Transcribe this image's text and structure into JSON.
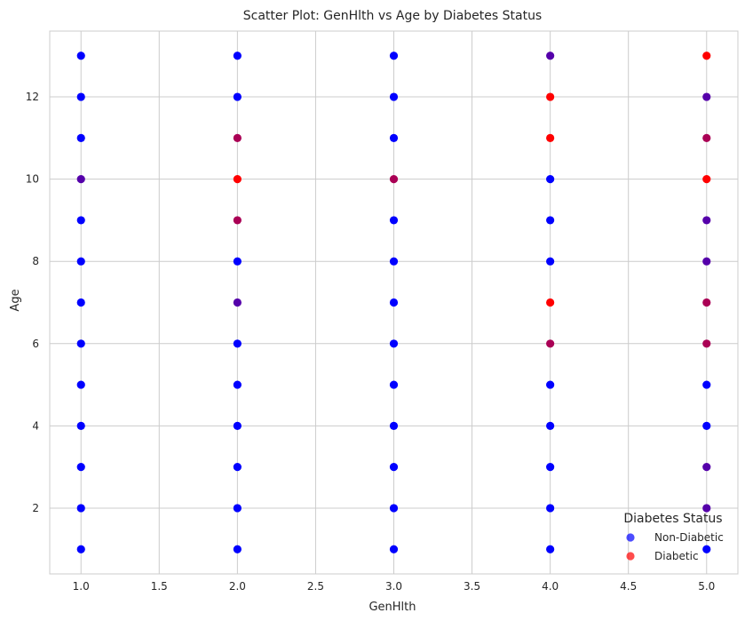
{
  "chart_data": {
    "type": "scatter",
    "title": "Scatter Plot: GenHlth vs Age by Diabetes Status",
    "xlabel": "GenHlth",
    "ylabel": "Age",
    "xlim": [
      0.8,
      5.2
    ],
    "ylim": [
      0.4,
      13.6
    ],
    "xticks": [
      "1.0",
      "1.5",
      "2.0",
      "2.5",
      "3.0",
      "3.5",
      "4.0",
      "4.5",
      "5.0"
    ],
    "yticks": [
      "2",
      "4",
      "6",
      "8",
      "10",
      "12"
    ],
    "grid": true,
    "legend": {
      "title": "Diabetes Status",
      "placement": "bottom-right",
      "entries": [
        {
          "label": "Non-Diabetic",
          "color": "#0000ff"
        },
        {
          "label": "Diabetic",
          "color": "#ff0000"
        }
      ]
    },
    "points": [
      {
        "x": 1,
        "y": 1,
        "color": "#0000ff"
      },
      {
        "x": 1,
        "y": 2,
        "color": "#0000ff"
      },
      {
        "x": 1,
        "y": 3,
        "color": "#0000ff"
      },
      {
        "x": 1,
        "y": 4,
        "color": "#0000ff"
      },
      {
        "x": 1,
        "y": 5,
        "color": "#0000ff"
      },
      {
        "x": 1,
        "y": 6,
        "color": "#0000ff"
      },
      {
        "x": 1,
        "y": 7,
        "color": "#0000ff"
      },
      {
        "x": 1,
        "y": 8,
        "color": "#0000ff"
      },
      {
        "x": 1,
        "y": 9,
        "color": "#0000ff"
      },
      {
        "x": 1,
        "y": 10,
        "color": "#5500aa"
      },
      {
        "x": 1,
        "y": 11,
        "color": "#0000ff"
      },
      {
        "x": 1,
        "y": 12,
        "color": "#0000ff"
      },
      {
        "x": 1,
        "y": 13,
        "color": "#0000ff"
      },
      {
        "x": 2,
        "y": 1,
        "color": "#0000ff"
      },
      {
        "x": 2,
        "y": 2,
        "color": "#0000ff"
      },
      {
        "x": 2,
        "y": 3,
        "color": "#0000ff"
      },
      {
        "x": 2,
        "y": 4,
        "color": "#0000ff"
      },
      {
        "x": 2,
        "y": 5,
        "color": "#0000ff"
      },
      {
        "x": 2,
        "y": 6,
        "color": "#0000ff"
      },
      {
        "x": 2,
        "y": 7,
        "color": "#5500aa"
      },
      {
        "x": 2,
        "y": 8,
        "color": "#0000ff"
      },
      {
        "x": 2,
        "y": 9,
        "color": "#aa0055"
      },
      {
        "x": 2,
        "y": 10,
        "color": "#ff0000"
      },
      {
        "x": 2,
        "y": 11,
        "color": "#aa0055"
      },
      {
        "x": 2,
        "y": 12,
        "color": "#0000ff"
      },
      {
        "x": 2,
        "y": 13,
        "color": "#0000ff"
      },
      {
        "x": 3,
        "y": 1,
        "color": "#0000ff"
      },
      {
        "x": 3,
        "y": 2,
        "color": "#0000ff"
      },
      {
        "x": 3,
        "y": 3,
        "color": "#0000ff"
      },
      {
        "x": 3,
        "y": 4,
        "color": "#0000ff"
      },
      {
        "x": 3,
        "y": 5,
        "color": "#0000ff"
      },
      {
        "x": 3,
        "y": 6,
        "color": "#0000ff"
      },
      {
        "x": 3,
        "y": 7,
        "color": "#0000ff"
      },
      {
        "x": 3,
        "y": 8,
        "color": "#0000ff"
      },
      {
        "x": 3,
        "y": 9,
        "color": "#0000ff"
      },
      {
        "x": 3,
        "y": 10,
        "color": "#aa0055"
      },
      {
        "x": 3,
        "y": 11,
        "color": "#0000ff"
      },
      {
        "x": 3,
        "y": 12,
        "color": "#0000ff"
      },
      {
        "x": 3,
        "y": 13,
        "color": "#0000ff"
      },
      {
        "x": 4,
        "y": 1,
        "color": "#0000ff"
      },
      {
        "x": 4,
        "y": 2,
        "color": "#0000ff"
      },
      {
        "x": 4,
        "y": 3,
        "color": "#0000ff"
      },
      {
        "x": 4,
        "y": 4,
        "color": "#0000ff"
      },
      {
        "x": 4,
        "y": 5,
        "color": "#0000ff"
      },
      {
        "x": 4,
        "y": 6,
        "color": "#aa0055"
      },
      {
        "x": 4,
        "y": 7,
        "color": "#ff0000"
      },
      {
        "x": 4,
        "y": 8,
        "color": "#0000ff"
      },
      {
        "x": 4,
        "y": 9,
        "color": "#0000ff"
      },
      {
        "x": 4,
        "y": 10,
        "color": "#0000ff"
      },
      {
        "x": 4,
        "y": 11,
        "color": "#ff0000"
      },
      {
        "x": 4,
        "y": 12,
        "color": "#ff0000"
      },
      {
        "x": 4,
        "y": 13,
        "color": "#5500aa"
      },
      {
        "x": 5,
        "y": 1,
        "color": "#0000ff"
      },
      {
        "x": 5,
        "y": 2,
        "color": "#5500aa"
      },
      {
        "x": 5,
        "y": 3,
        "color": "#5500aa"
      },
      {
        "x": 5,
        "y": 4,
        "color": "#0000ff"
      },
      {
        "x": 5,
        "y": 5,
        "color": "#0000ff"
      },
      {
        "x": 5,
        "y": 6,
        "color": "#aa0055"
      },
      {
        "x": 5,
        "y": 7,
        "color": "#aa0055"
      },
      {
        "x": 5,
        "y": 8,
        "color": "#5500aa"
      },
      {
        "x": 5,
        "y": 9,
        "color": "#5500aa"
      },
      {
        "x": 5,
        "y": 10,
        "color": "#ff0000"
      },
      {
        "x": 5,
        "y": 11,
        "color": "#aa0055"
      },
      {
        "x": 5,
        "y": 12,
        "color": "#5500aa"
      },
      {
        "x": 5,
        "y": 13,
        "color": "#ff0000"
      }
    ]
  }
}
